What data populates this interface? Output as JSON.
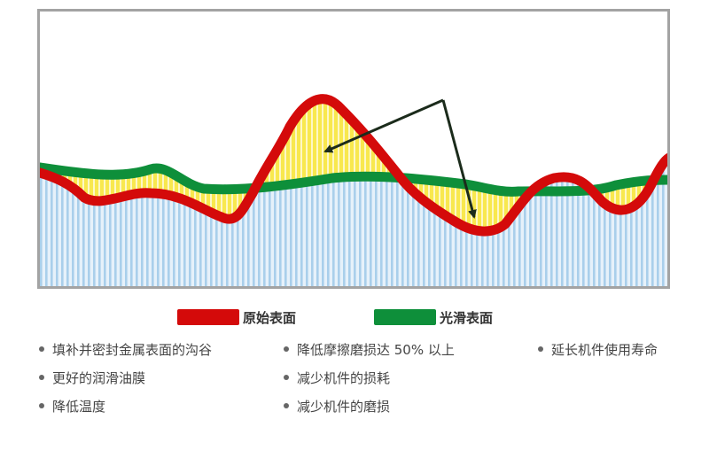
{
  "colors": {
    "original_surface": "#d40a0a",
    "smooth_surface": "#0e8f3a",
    "fill_gap": "#f6e24a",
    "substrate": "#bcd9ef",
    "arrow": "#1b2b1b"
  },
  "legend": {
    "original_surface": "原始表面",
    "smooth_surface": "光滑表面"
  },
  "benefits": {
    "col1": [
      "填补并密封金属表面的沟谷",
      "更好的润滑油膜",
      "降低温度"
    ],
    "col2": [
      "降低摩擦磨损达 50% 以上",
      "减少机件的损耗",
      "减少机件的磨损"
    ],
    "col3": [
      "延长机件使用寿命"
    ]
  }
}
